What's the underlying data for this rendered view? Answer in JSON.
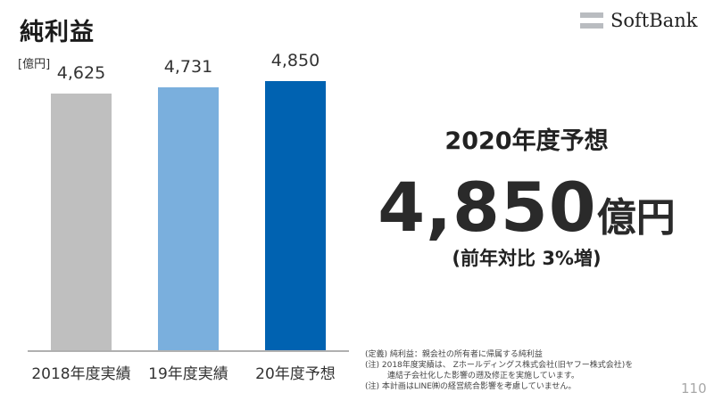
{
  "slide": {
    "title": "純利益",
    "page_number": "110",
    "logo": {
      "text": "SoftBank",
      "icon": "softbank-bars-icon"
    }
  },
  "chart_data": {
    "type": "bar",
    "title": "純利益",
    "ylabel": "[億円]",
    "xlabel": "",
    "categories": [
      "2018年度実績",
      "19年度実績",
      "20年度予想"
    ],
    "values": [
      4625,
      4731,
      4850
    ],
    "value_labels": [
      "4,625",
      "4,731",
      "4,850"
    ],
    "colors": [
      "#bfbfbf",
      "#7aafdd",
      "#0062b1"
    ],
    "grid": false,
    "legend": "none",
    "ylim": [
      0,
      5000
    ]
  },
  "forecast": {
    "heading": "2020年度予想",
    "value": "4,850",
    "unit": "億円",
    "yoy": "(前年対比 3%増)"
  },
  "notes": [
    "(定義) 純利益：親会社の所有者に帰属する純利益",
    "(注) 2018年度実績は、 Zホールディングス株式会社(旧ヤフー株式会社)を",
    "連結子会社化した影響の遡及修正を実施しています。",
    "(注) 本計画はLINE㈱の経営統合影響を考慮していません。"
  ]
}
